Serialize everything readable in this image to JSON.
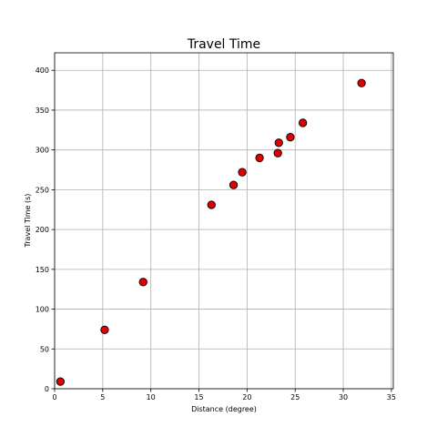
{
  "chart_data": {
    "type": "scatter",
    "title": "Travel Time",
    "xlabel": "Distance (degree)",
    "ylabel": "Travel Time (s)",
    "xlim": [
      0,
      35.2
    ],
    "ylim": [
      0,
      422
    ],
    "xticks": [
      0,
      5,
      10,
      15,
      20,
      25,
      30,
      35
    ],
    "yticks": [
      0,
      50,
      100,
      150,
      200,
      250,
      300,
      350,
      400
    ],
    "grid": true,
    "marker_color": "#e00000",
    "marker_edge_color": "#000000",
    "series": [
      {
        "points": [
          {
            "x": 0.6,
            "y": 9
          },
          {
            "x": 5.2,
            "y": 74
          },
          {
            "x": 9.2,
            "y": 134
          },
          {
            "x": 16.3,
            "y": 231
          },
          {
            "x": 18.6,
            "y": 256
          },
          {
            "x": 19.5,
            "y": 272
          },
          {
            "x": 21.3,
            "y": 290
          },
          {
            "x": 23.3,
            "y": 309
          },
          {
            "x": 23.2,
            "y": 296
          },
          {
            "x": 24.5,
            "y": 316
          },
          {
            "x": 25.8,
            "y": 334
          },
          {
            "x": 31.9,
            "y": 384
          }
        ]
      }
    ]
  }
}
